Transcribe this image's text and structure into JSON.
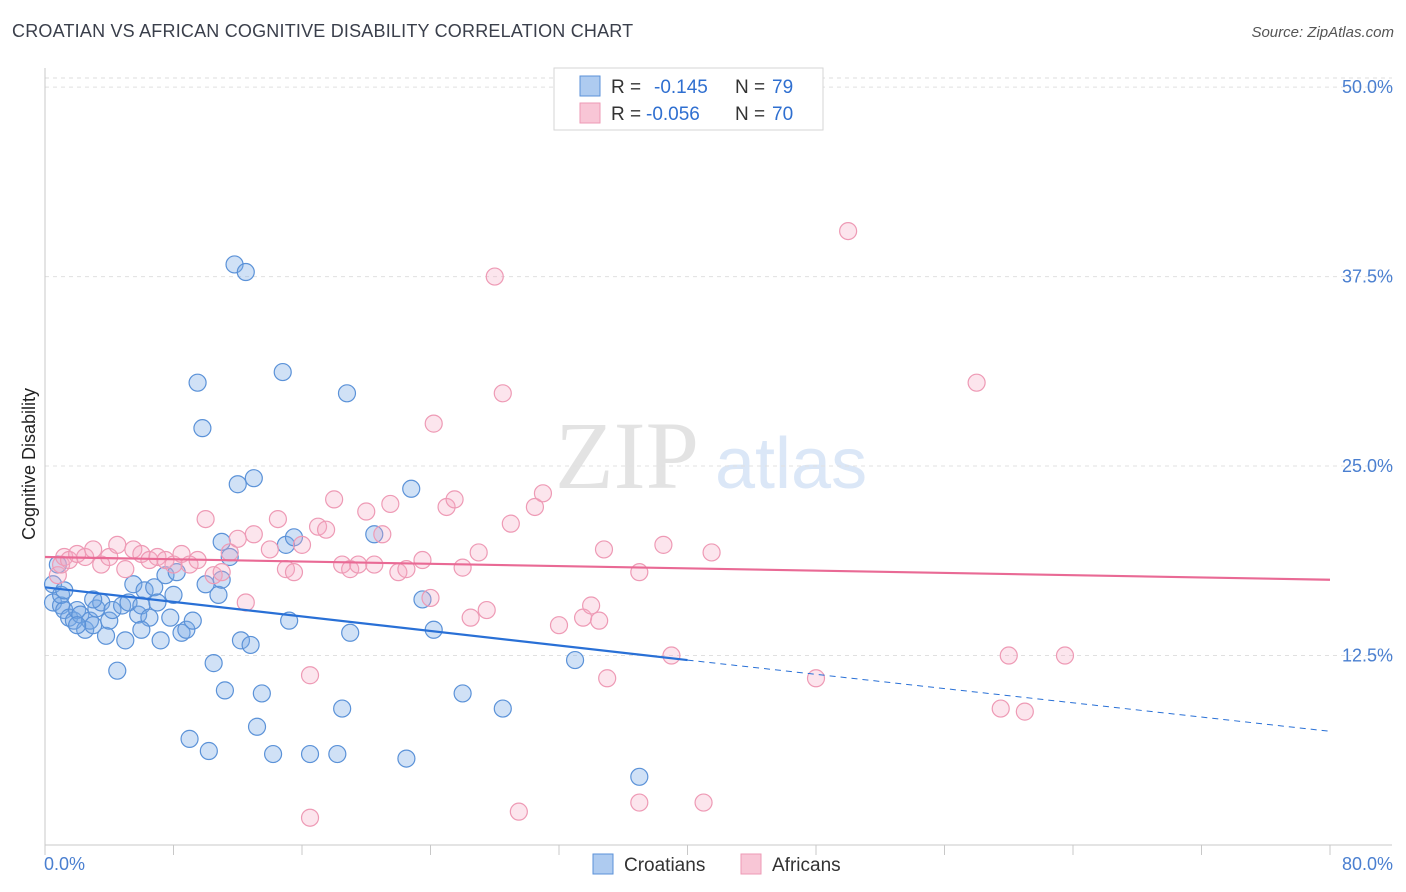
{
  "title": "CROATIAN VS AFRICAN COGNITIVE DISABILITY CORRELATION CHART",
  "source": "Source: ZipAtlas.com",
  "watermark": {
    "zip": "ZIP",
    "atlas": "atlas"
  },
  "legend": {
    "r_label": "R =",
    "n_label": "N =",
    "rows": [
      {
        "r": "-0.145",
        "n": "79"
      },
      {
        "r": "-0.056",
        "n": "70"
      }
    ]
  },
  "colors": {
    "blue": "#2970d6",
    "blue_fill": "rgba(120,170,230,0.35)",
    "blue_stroke": "#5b92d8",
    "pink": "#e96a95",
    "pink_fill": "rgba(245,170,195,0.30)",
    "pink_stroke": "#ee9ab5"
  },
  "chart_data": {
    "type": "scatter",
    "title": "CROATIAN VS AFRICAN COGNITIVE DISABILITY CORRELATION CHART",
    "xlabel": "",
    "ylabel": "Cognitive Disability",
    "xlim": [
      0,
      80
    ],
    "ylim": [
      0,
      52
    ],
    "x_tick_labels": [
      "0.0%",
      "80.0%"
    ],
    "y_ticks": [
      12.5,
      25.0,
      37.5,
      50.0
    ],
    "y_tick_labels": [
      "12.5%",
      "25.0%",
      "37.5%",
      "50.0%"
    ],
    "grid": true,
    "legend_position": "top-center",
    "series": [
      {
        "name": "Croatians",
        "r": -0.145,
        "n": 79,
        "trend": {
          "x0": 0,
          "y0": 17.0,
          "x1": 40,
          "y1": 12.2,
          "dash_to_x": 80,
          "dash_to_y": 7.5
        },
        "points": [
          [
            0.5,
            17.2
          ],
          [
            0.5,
            16.0
          ],
          [
            0.8,
            18.5
          ],
          [
            1.0,
            15.8
          ],
          [
            1.2,
            15.5
          ],
          [
            1.0,
            16.5
          ],
          [
            1.5,
            15.0
          ],
          [
            1.8,
            14.8
          ],
          [
            2.0,
            15.5
          ],
          [
            2.2,
            15.2
          ],
          [
            2.5,
            14.2
          ],
          [
            2.8,
            14.8
          ],
          [
            3.0,
            14.5
          ],
          [
            3.2,
            15.6
          ],
          [
            3.5,
            16.0
          ],
          [
            3.8,
            13.8
          ],
          [
            4.0,
            14.8
          ],
          [
            4.2,
            15.5
          ],
          [
            4.5,
            11.5
          ],
          [
            4.8,
            15.8
          ],
          [
            5.0,
            13.5
          ],
          [
            5.2,
            16.0
          ],
          [
            5.5,
            17.2
          ],
          [
            5.8,
            15.2
          ],
          [
            6.0,
            15.8
          ],
          [
            6.2,
            16.8
          ],
          [
            6.5,
            15.0
          ],
          [
            6.8,
            17.0
          ],
          [
            7.0,
            16.0
          ],
          [
            7.2,
            13.5
          ],
          [
            7.5,
            17.8
          ],
          [
            7.8,
            15.0
          ],
          [
            8.0,
            16.5
          ],
          [
            8.2,
            18.0
          ],
          [
            8.5,
            14.0
          ],
          [
            8.8,
            14.2
          ],
          [
            9.0,
            7.0
          ],
          [
            9.2,
            14.8
          ],
          [
            9.5,
            30.5
          ],
          [
            9.8,
            27.5
          ],
          [
            10.0,
            17.2
          ],
          [
            10.2,
            6.2
          ],
          [
            10.5,
            12.0
          ],
          [
            10.8,
            16.5
          ],
          [
            11.0,
            20.0
          ],
          [
            11.2,
            10.2
          ],
          [
            11.5,
            19.0
          ],
          [
            11.8,
            38.3
          ],
          [
            12.0,
            23.8
          ],
          [
            12.2,
            13.5
          ],
          [
            12.5,
            37.8
          ],
          [
            12.8,
            13.2
          ],
          [
            13.0,
            24.2
          ],
          [
            13.2,
            7.8
          ],
          [
            13.5,
            10.0
          ],
          [
            14.2,
            6.0
          ],
          [
            14.8,
            31.2
          ],
          [
            15.0,
            19.8
          ],
          [
            15.2,
            14.8
          ],
          [
            15.5,
            20.3
          ],
          [
            16.5,
            6.0
          ],
          [
            18.2,
            6.0
          ],
          [
            18.5,
            9.0
          ],
          [
            18.8,
            29.8
          ],
          [
            19.0,
            14.0
          ],
          [
            20.5,
            20.5
          ],
          [
            22.5,
            5.7
          ],
          [
            22.8,
            23.5
          ],
          [
            23.5,
            16.2
          ],
          [
            24.2,
            14.2
          ],
          [
            26.0,
            10.0
          ],
          [
            28.5,
            9.0
          ],
          [
            33.0,
            12.2
          ],
          [
            37.0,
            4.5
          ],
          [
            1.2,
            16.8
          ],
          [
            2.0,
            14.5
          ],
          [
            3.0,
            16.2
          ],
          [
            6.0,
            14.2
          ],
          [
            11.0,
            17.5
          ]
        ]
      },
      {
        "name": "Africans",
        "r": -0.056,
        "n": 70,
        "trend": {
          "x0": 0,
          "y0": 19.0,
          "x1": 80,
          "y1": 17.5
        },
        "points": [
          [
            0.8,
            17.8
          ],
          [
            1.0,
            18.5
          ],
          [
            1.2,
            19.0
          ],
          [
            1.5,
            18.8
          ],
          [
            2.0,
            19.2
          ],
          [
            2.5,
            19.0
          ],
          [
            3.0,
            19.5
          ],
          [
            3.5,
            18.5
          ],
          [
            4.0,
            19.0
          ],
          [
            4.5,
            19.8
          ],
          [
            5.0,
            18.2
          ],
          [
            5.5,
            19.5
          ],
          [
            6.0,
            19.2
          ],
          [
            6.5,
            18.8
          ],
          [
            7.0,
            19.0
          ],
          [
            7.5,
            18.8
          ],
          [
            8.0,
            18.5
          ],
          [
            8.5,
            19.2
          ],
          [
            9.0,
            18.5
          ],
          [
            9.5,
            18.8
          ],
          [
            10.0,
            21.5
          ],
          [
            10.5,
            17.8
          ],
          [
            11.0,
            18.0
          ],
          [
            11.5,
            19.3
          ],
          [
            12.0,
            20.2
          ],
          [
            12.5,
            16.0
          ],
          [
            13.0,
            20.5
          ],
          [
            14.0,
            19.5
          ],
          [
            14.5,
            21.5
          ],
          [
            15.0,
            18.2
          ],
          [
            15.5,
            18.0
          ],
          [
            16.0,
            19.8
          ],
          [
            16.5,
            11.2
          ],
          [
            17.0,
            21.0
          ],
          [
            17.5,
            20.8
          ],
          [
            18.0,
            22.8
          ],
          [
            18.5,
            18.5
          ],
          [
            19.0,
            18.2
          ],
          [
            19.5,
            18.5
          ],
          [
            20.0,
            22.0
          ],
          [
            20.5,
            18.5
          ],
          [
            21.0,
            20.5
          ],
          [
            21.5,
            22.5
          ],
          [
            22.0,
            18.0
          ],
          [
            22.5,
            18.2
          ],
          [
            23.5,
            18.8
          ],
          [
            24.0,
            16.3
          ],
          [
            25.0,
            22.3
          ],
          [
            25.5,
            22.8
          ],
          [
            26.0,
            18.3
          ],
          [
            26.5,
            15.0
          ],
          [
            27.0,
            19.3
          ],
          [
            27.5,
            15.5
          ],
          [
            28.0,
            37.5
          ],
          [
            28.5,
            29.8
          ],
          [
            29.0,
            21.2
          ],
          [
            30.5,
            22.3
          ],
          [
            31.0,
            23.2
          ],
          [
            32.0,
            14.5
          ],
          [
            33.5,
            15.0
          ],
          [
            34.0,
            15.8
          ],
          [
            34.5,
            14.8
          ],
          [
            35.0,
            11.0
          ],
          [
            37.0,
            18.0
          ],
          [
            38.5,
            19.8
          ],
          [
            39.0,
            12.5
          ],
          [
            41.0,
            2.8
          ],
          [
            41.5,
            19.3
          ],
          [
            50.0,
            40.5
          ],
          [
            60.0,
            12.5
          ]
        ]
      }
    ]
  },
  "extra_points_africans": [
    [
      58.0,
      30.5
    ],
    [
      63.5,
      12.5
    ],
    [
      59.5,
      9.0
    ],
    [
      37.0,
      2.8
    ],
    [
      29.5,
      2.2
    ],
    [
      16.5,
      1.8
    ],
    [
      34.8,
      19.5
    ],
    [
      48.0,
      11.0
    ],
    [
      61.0,
      8.8
    ],
    [
      24.2,
      27.8
    ]
  ]
}
